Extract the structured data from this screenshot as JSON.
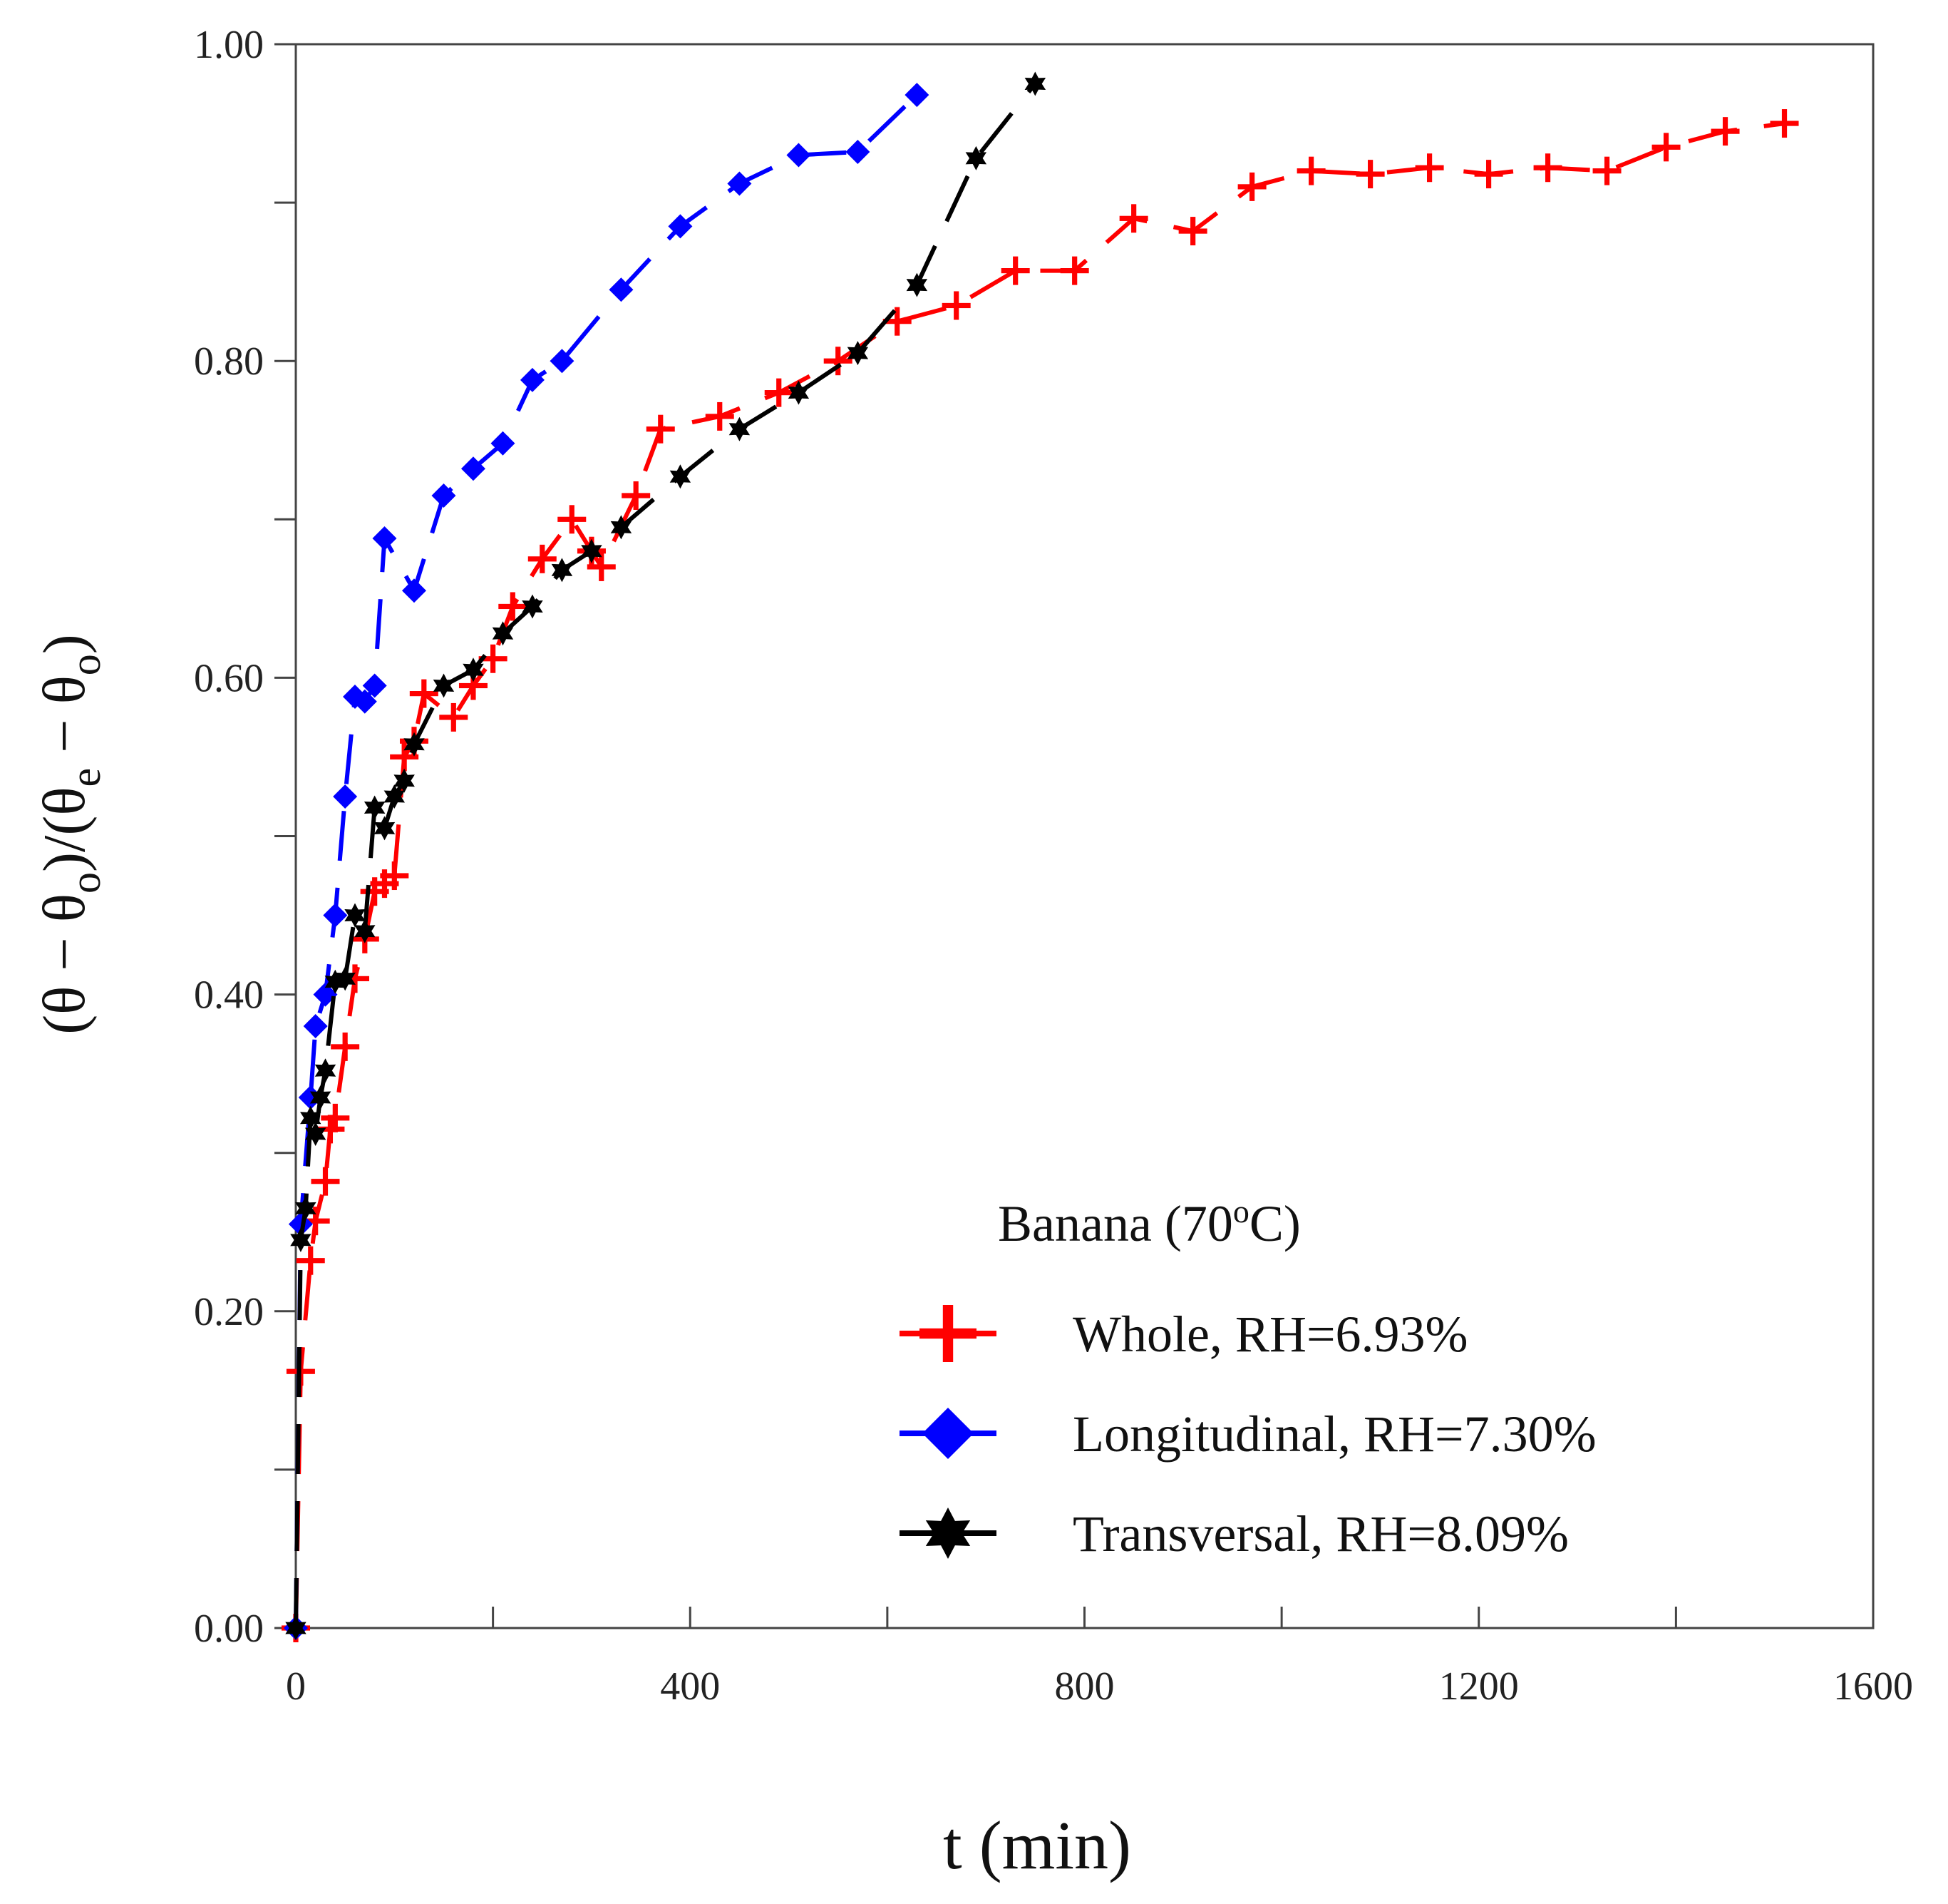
{
  "chart_data": {
    "type": "line",
    "title": "",
    "xlabel": "t (min)",
    "ylabel": "(θ − θo)/(θe − θo)",
    "xlim": [
      0,
      1600
    ],
    "ylim": [
      0,
      1
    ],
    "xticks": [
      "0",
      "400",
      "800",
      "1200",
      "1600"
    ],
    "yticks": [
      "0.00",
      "0.20",
      "0.40",
      "0.60",
      "0.80",
      "1.00"
    ],
    "xtick_values": [
      0,
      400,
      800,
      1200,
      1600
    ],
    "ytick_values": [
      0,
      0.2,
      0.4,
      0.6,
      0.8,
      1.0
    ],
    "legend_title": "Banana (70ºC)",
    "legend_title_parts": {
      "before": "Banana (70",
      "sup": "o",
      "after": "C)"
    },
    "legend_position": "bottom-right",
    "grid": false,
    "series": [
      {
        "name": "Whole, RH=6.93%",
        "color": "#ff0000",
        "marker": "plus",
        "x": [
          0,
          5,
          15,
          20,
          30,
          35,
          40,
          50,
          60,
          70,
          80,
          90,
          100,
          110,
          120,
          130,
          160,
          180,
          200,
          220,
          250,
          280,
          300,
          310,
          345,
          370,
          430,
          490,
          550,
          610,
          670,
          730,
          790,
          850,
          910,
          970,
          1030,
          1090,
          1150,
          1210,
          1270,
          1330,
          1390,
          1450,
          1510
        ],
        "y": [
          0.0,
          0.162,
          0.232,
          0.257,
          0.282,
          0.315,
          0.322,
          0.367,
          0.41,
          0.435,
          0.465,
          0.47,
          0.475,
          0.55,
          0.56,
          0.59,
          0.575,
          0.595,
          0.612,
          0.645,
          0.675,
          0.7,
          0.68,
          0.67,
          0.715,
          0.757,
          0.765,
          0.78,
          0.8,
          0.825,
          0.835,
          0.857,
          0.857,
          0.89,
          0.882,
          0.91,
          0.92,
          0.918,
          0.922,
          0.918,
          0.922,
          0.92,
          0.935,
          0.945,
          0.95
        ]
      },
      {
        "name": "Longitudinal, RH=7.30%",
        "color": "#0000ff",
        "marker": "diamond",
        "x": [
          0,
          5,
          15,
          20,
          30,
          40,
          50,
          60,
          70,
          80,
          90,
          120,
          150,
          180,
          210,
          240,
          270,
          330,
          390,
          450,
          510,
          570,
          630
        ],
        "y": [
          0.0,
          0.255,
          0.335,
          0.38,
          0.4,
          0.45,
          0.525,
          0.588,
          0.585,
          0.595,
          0.688,
          0.655,
          0.715,
          0.732,
          0.748,
          0.788,
          0.8,
          0.845,
          0.885,
          0.912,
          0.93,
          0.932,
          0.968
        ]
      },
      {
        "name": "Transversal, RH=8.09%",
        "color": "#000000",
        "marker": "star",
        "x": [
          0,
          5,
          10,
          15,
          20,
          25,
          30,
          40,
          50,
          60,
          70,
          80,
          90,
          100,
          110,
          120,
          150,
          180,
          210,
          240,
          270,
          300,
          330,
          390,
          450,
          510,
          570,
          630,
          690,
          750
        ],
        "y": [
          0.0,
          0.245,
          0.265,
          0.322,
          0.312,
          0.335,
          0.352,
          0.408,
          0.41,
          0.45,
          0.44,
          0.518,
          0.505,
          0.525,
          0.535,
          0.558,
          0.595,
          0.605,
          0.628,
          0.645,
          0.668,
          0.68,
          0.695,
          0.727,
          0.757,
          0.78,
          0.805,
          0.848,
          0.928,
          0.975
        ]
      }
    ]
  }
}
